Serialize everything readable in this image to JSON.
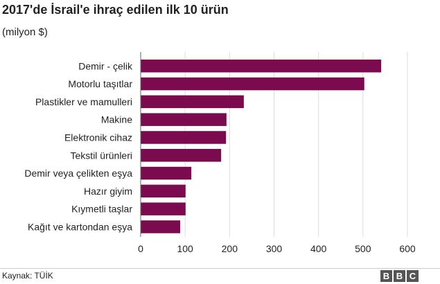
{
  "title": "2017'de İsrail'e ihraç edilen ilk 10 ürün",
  "subtitle": "(milyon $)",
  "source": "Kaynak: TÜİK",
  "logo": [
    "B",
    "B",
    "C"
  ],
  "colors": {
    "bar": "#7c0a4e",
    "grid": "#dddddd",
    "axis": "#666666"
  },
  "chart_data": {
    "type": "bar",
    "orientation": "horizontal",
    "categories": [
      "Demir - çelik",
      "Motorlu taşıtlar",
      "Plastikler ve mamulleri",
      "Makine",
      "Elektronik cihaz",
      "Tekstil ürünleri",
      "Demir veya çelikten eşya",
      "Hazır giyim",
      "Kıymetli taşlar",
      "Kağıt ve kartondan eşya"
    ],
    "values": [
      541,
      503,
      232,
      193,
      192,
      181,
      114,
      101,
      101,
      89
    ],
    "xlim": [
      0,
      600
    ],
    "xticks": [
      "0",
      "100",
      "200",
      "300",
      "400",
      "500",
      "600"
    ],
    "grid": "vertical"
  }
}
